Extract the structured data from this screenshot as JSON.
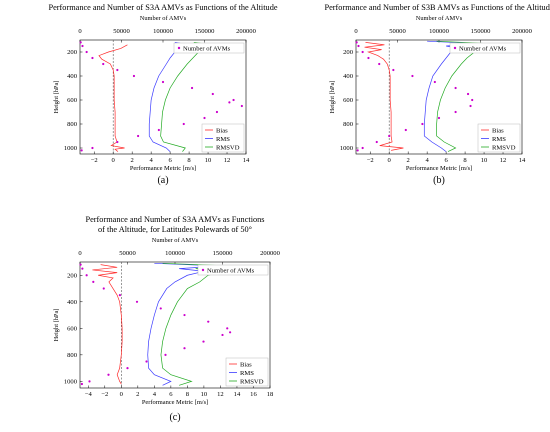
{
  "colors": {
    "bias": "#ff2a2a",
    "rms": "#3a3aff",
    "rmsvd": "#22aa22",
    "count": "#cc00cc"
  },
  "chart_data": [
    {
      "id": "a",
      "type": "line",
      "panel_label": "(a)",
      "title": [
        "Performance and Number of S3A AMVs as Functions of the Altitude"
      ],
      "xlabel": "Performance Metric [m/s]",
      "ylabel": "Height [hPa]",
      "x2label": "Number of AMVs",
      "xlim": [
        -3.5,
        14
      ],
      "ylim": [
        1050,
        100
      ],
      "y_inverted": true,
      "x2lim": [
        0,
        200000
      ],
      "xticks": [
        -2,
        0,
        2,
        4,
        6,
        8,
        10,
        12,
        14
      ],
      "x2ticks": [
        0,
        50000,
        100000,
        150000,
        200000
      ],
      "yticks": [
        200,
        400,
        600,
        800,
        1000
      ],
      "grid": false,
      "legend_top": "Number of AVMs",
      "legend_top_position": "top-right",
      "legend_bottom": [
        "Bias",
        "RMS",
        "RMSVD"
      ],
      "legend_bottom_position": "bottom-right",
      "series": [
        {
          "name": "Bias",
          "color_key": "bias",
          "axis": "x",
          "p": [
            140,
            170,
            200,
            230,
            260,
            300,
            350,
            400,
            500,
            600,
            700,
            800,
            900,
            950,
            980,
            1000,
            1010,
            1030
          ],
          "v": [
            1.5,
            0.8,
            -0.5,
            -1.5,
            -1.2,
            -0.3,
            0.0,
            0.1,
            0.1,
            0.1,
            0.2,
            0.2,
            0.2,
            0.4,
            -0.2,
            1.2,
            0.2,
            0.5
          ]
        },
        {
          "name": "RMS",
          "color_key": "rms",
          "axis": "x",
          "p": [
            120,
            140,
            170,
            200,
            250,
            300,
            400,
            500,
            600,
            700,
            800,
            900,
            950,
            1000,
            1030
          ],
          "v": [
            6.5,
            8.0,
            7.0,
            6.5,
            6.0,
            5.6,
            4.8,
            4.3,
            4.0,
            3.9,
            3.8,
            3.8,
            4.2,
            5.6,
            6.0
          ]
        },
        {
          "name": "RMSVD",
          "color_key": "rmsvd",
          "axis": "x",
          "p": [
            120,
            140,
            170,
            200,
            250,
            300,
            400,
            500,
            600,
            700,
            800,
            900,
            950,
            1000,
            1030
          ],
          "v": [
            8.5,
            10.5,
            9.5,
            9.0,
            8.4,
            7.8,
            6.8,
            6.0,
            5.5,
            5.2,
            5.1,
            5.0,
            5.3,
            7.6,
            7.3
          ]
        },
        {
          "name": "Number of AVMs",
          "color_key": "count",
          "axis": "x2",
          "p": [
            120,
            150,
            200,
            250,
            300,
            350,
            400,
            450,
            500,
            550,
            600,
            620,
            650,
            700,
            750,
            800,
            850,
            900,
            950,
            1000,
            1020
          ],
          "v": [
            800,
            3000,
            8000,
            15000,
            28000,
            45000,
            65000,
            100000,
            135000,
            160000,
            185000,
            180000,
            195000,
            165000,
            150000,
            125000,
            95000,
            70000,
            45000,
            15000,
            2000
          ]
        }
      ]
    },
    {
      "id": "b",
      "type": "line",
      "panel_label": "(b)",
      "title": [
        "Performance and Number of S3B AMVs as Functions of the Altitude"
      ],
      "xlabel": "Performance Metric [m/s]",
      "ylabel": "Height [hPa]",
      "x2label": "Number of AMVs",
      "xlim": [
        -3.5,
        14
      ],
      "ylim": [
        1050,
        100
      ],
      "y_inverted": true,
      "x2lim": [
        0,
        200000
      ],
      "xticks": [
        -2,
        0,
        2,
        4,
        6,
        8,
        10,
        12,
        14
      ],
      "x2ticks": [
        0,
        50000,
        100000,
        150000,
        200000
      ],
      "yticks": [
        200,
        400,
        600,
        800,
        1000
      ],
      "grid": false,
      "legend_top": "Number of AVMs",
      "legend_top_position": "top-right",
      "legend_bottom": [
        "Bias",
        "RMS",
        "RMSVD"
      ],
      "legend_bottom_position": "bottom-right",
      "series": [
        {
          "name": "Bias",
          "color_key": "bias",
          "axis": "x",
          "p": [
            120,
            140,
            160,
            180,
            200,
            230,
            260,
            300,
            350,
            400,
            500,
            600,
            700,
            800,
            900,
            950,
            980,
            1000,
            1020
          ],
          "v": [
            -2.5,
            -0.5,
            -2.6,
            -0.8,
            -2.2,
            -1.2,
            -0.6,
            -0.2,
            0.0,
            0.1,
            0.1,
            0.1,
            0.2,
            0.2,
            0.2,
            0.3,
            -1.0,
            1.5,
            0.2
          ]
        },
        {
          "name": "RMS",
          "color_key": "rms",
          "axis": "x",
          "p": [
            110,
            130,
            150,
            180,
            200,
            250,
            300,
            400,
            500,
            600,
            700,
            800,
            900,
            950,
            1000,
            1030
          ],
          "v": [
            4.0,
            9.5,
            6.0,
            8.0,
            6.5,
            6.0,
            5.5,
            4.6,
            4.2,
            3.9,
            3.8,
            3.7,
            3.7,
            4.5,
            5.5,
            6.0
          ]
        },
        {
          "name": "RMSVD",
          "color_key": "rmsvd",
          "axis": "x",
          "p": [
            110,
            130,
            150,
            180,
            200,
            250,
            300,
            400,
            500,
            600,
            700,
            800,
            900,
            950,
            1000,
            1030
          ],
          "v": [
            5.0,
            10.5,
            8.0,
            10.0,
            9.0,
            8.2,
            7.6,
            6.6,
            5.9,
            5.4,
            5.1,
            5.0,
            5.0,
            5.8,
            7.0,
            6.2
          ]
        },
        {
          "name": "Number of AVMs",
          "color_key": "count",
          "axis": "x2",
          "p": [
            120,
            150,
            200,
            250,
            300,
            350,
            400,
            450,
            500,
            550,
            600,
            650,
            700,
            750,
            800,
            850,
            900,
            950,
            1000,
            1020
          ],
          "v": [
            800,
            3000,
            8000,
            15000,
            28000,
            45000,
            68000,
            95000,
            120000,
            135000,
            140000,
            138000,
            120000,
            100000,
            80000,
            60000,
            40000,
            25000,
            8000,
            2000
          ]
        }
      ]
    },
    {
      "id": "c",
      "type": "line",
      "panel_label": "(c)",
      "title": [
        "Performance and Number of S3A AMVs as Functions",
        "of the Altitude, for Latitudes Polewards of 50°"
      ],
      "xlabel": "Performance Metric [m/s]",
      "ylabel": "Height [hPa]",
      "x2label": "Number of AMVs",
      "xlim": [
        -5,
        18
      ],
      "ylim": [
        1050,
        100
      ],
      "y_inverted": true,
      "x2lim": [
        0,
        200000
      ],
      "xticks": [
        -4,
        -2,
        0,
        2,
        4,
        6,
        8,
        10,
        12,
        14,
        16,
        18
      ],
      "x2ticks": [
        0,
        50000,
        100000,
        150000,
        200000
      ],
      "yticks": [
        200,
        400,
        600,
        800,
        1000
      ],
      "grid": false,
      "legend_top": "Number of AVMs",
      "legend_top_position": "top-right",
      "legend_bottom": [
        "Bias",
        "RMS",
        "RMSVD"
      ],
      "legend_bottom_position": "bottom-right",
      "series": [
        {
          "name": "Bias",
          "color_key": "bias",
          "axis": "x",
          "p": [
            120,
            140,
            160,
            180,
            200,
            220,
            250,
            300,
            350,
            400,
            500,
            600,
            700,
            800,
            900,
            950,
            1000,
            1020
          ],
          "v": [
            -2.5,
            -0.5,
            -3.5,
            -0.5,
            -2.8,
            -1.0,
            -1.5,
            -1.0,
            -0.5,
            -0.2,
            0.0,
            0.1,
            0.1,
            0.0,
            -0.2,
            -0.5,
            -0.2,
            0.0
          ]
        },
        {
          "name": "RMS",
          "color_key": "rms",
          "axis": "x",
          "p": [
            110,
            130,
            150,
            170,
            200,
            250,
            300,
            400,
            500,
            600,
            700,
            800,
            900,
            950,
            1000,
            1030
          ],
          "v": [
            4.0,
            12.0,
            7.0,
            10.0,
            8.0,
            6.5,
            5.5,
            4.5,
            4.0,
            3.6,
            3.3,
            3.2,
            3.3,
            4.0,
            6.0,
            5.0
          ]
        },
        {
          "name": "RMSVD",
          "color_key": "rmsvd",
          "axis": "x",
          "p": [
            110,
            130,
            150,
            170,
            200,
            250,
            300,
            400,
            500,
            600,
            700,
            800,
            900,
            950,
            1000,
            1030
          ],
          "v": [
            5.0,
            13.5,
            9.0,
            12.5,
            10.5,
            9.5,
            8.0,
            6.8,
            6.0,
            5.4,
            5.0,
            4.8,
            5.0,
            6.0,
            8.5,
            7.0
          ]
        },
        {
          "name": "Number of AVMs",
          "color_key": "count",
          "axis": "x2",
          "p": [
            120,
            150,
            200,
            250,
            300,
            350,
            400,
            450,
            500,
            550,
            600,
            630,
            650,
            700,
            750,
            800,
            850,
            900,
            950,
            1000,
            1020
          ],
          "v": [
            600,
            2500,
            7000,
            14000,
            25000,
            42000,
            60000,
            85000,
            110000,
            135000,
            155000,
            158000,
            150000,
            130000,
            110000,
            90000,
            70000,
            50000,
            30000,
            10000,
            2000
          ]
        }
      ]
    }
  ]
}
